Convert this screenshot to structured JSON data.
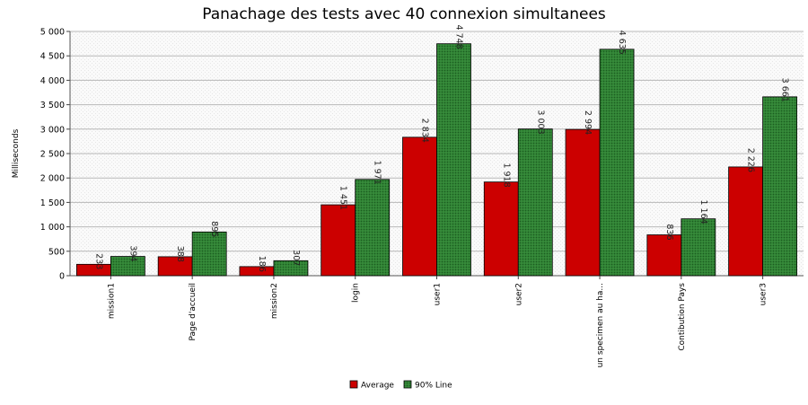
{
  "chart_data": {
    "type": "bar",
    "title": "Panachage des tests avec 40 connexion simultanees",
    "xlabel": "",
    "ylabel": "Milliseconds",
    "ylim": [
      0,
      5000
    ],
    "ytick_step": 500,
    "grid": true,
    "legend_position": "bottom",
    "categories": [
      "mission1",
      "Page d'accueil",
      "mission2",
      "login",
      "user1",
      "user2",
      "un specimen au ha...",
      "Contibution Pays",
      "user3"
    ],
    "series": [
      {
        "name": "Average",
        "color": "#cc0000",
        "values": [
          233,
          388,
          186,
          1451,
          2834,
          1918,
          2994,
          836,
          2226
        ],
        "labels": [
          "233",
          "388",
          "186",
          "1 451",
          "2 834",
          "1 918",
          "2 994",
          "836",
          "2 226"
        ]
      },
      {
        "name": "90% Line",
        "color": "#2e7d32",
        "values": [
          394,
          895,
          307,
          1971,
          4748,
          3003,
          4635,
          1164,
          3661
        ],
        "labels": [
          "394",
          "895",
          "307",
          "1 971",
          "4 748",
          "3 003",
          "4 635",
          "1 164",
          "3 661"
        ]
      }
    ]
  }
}
